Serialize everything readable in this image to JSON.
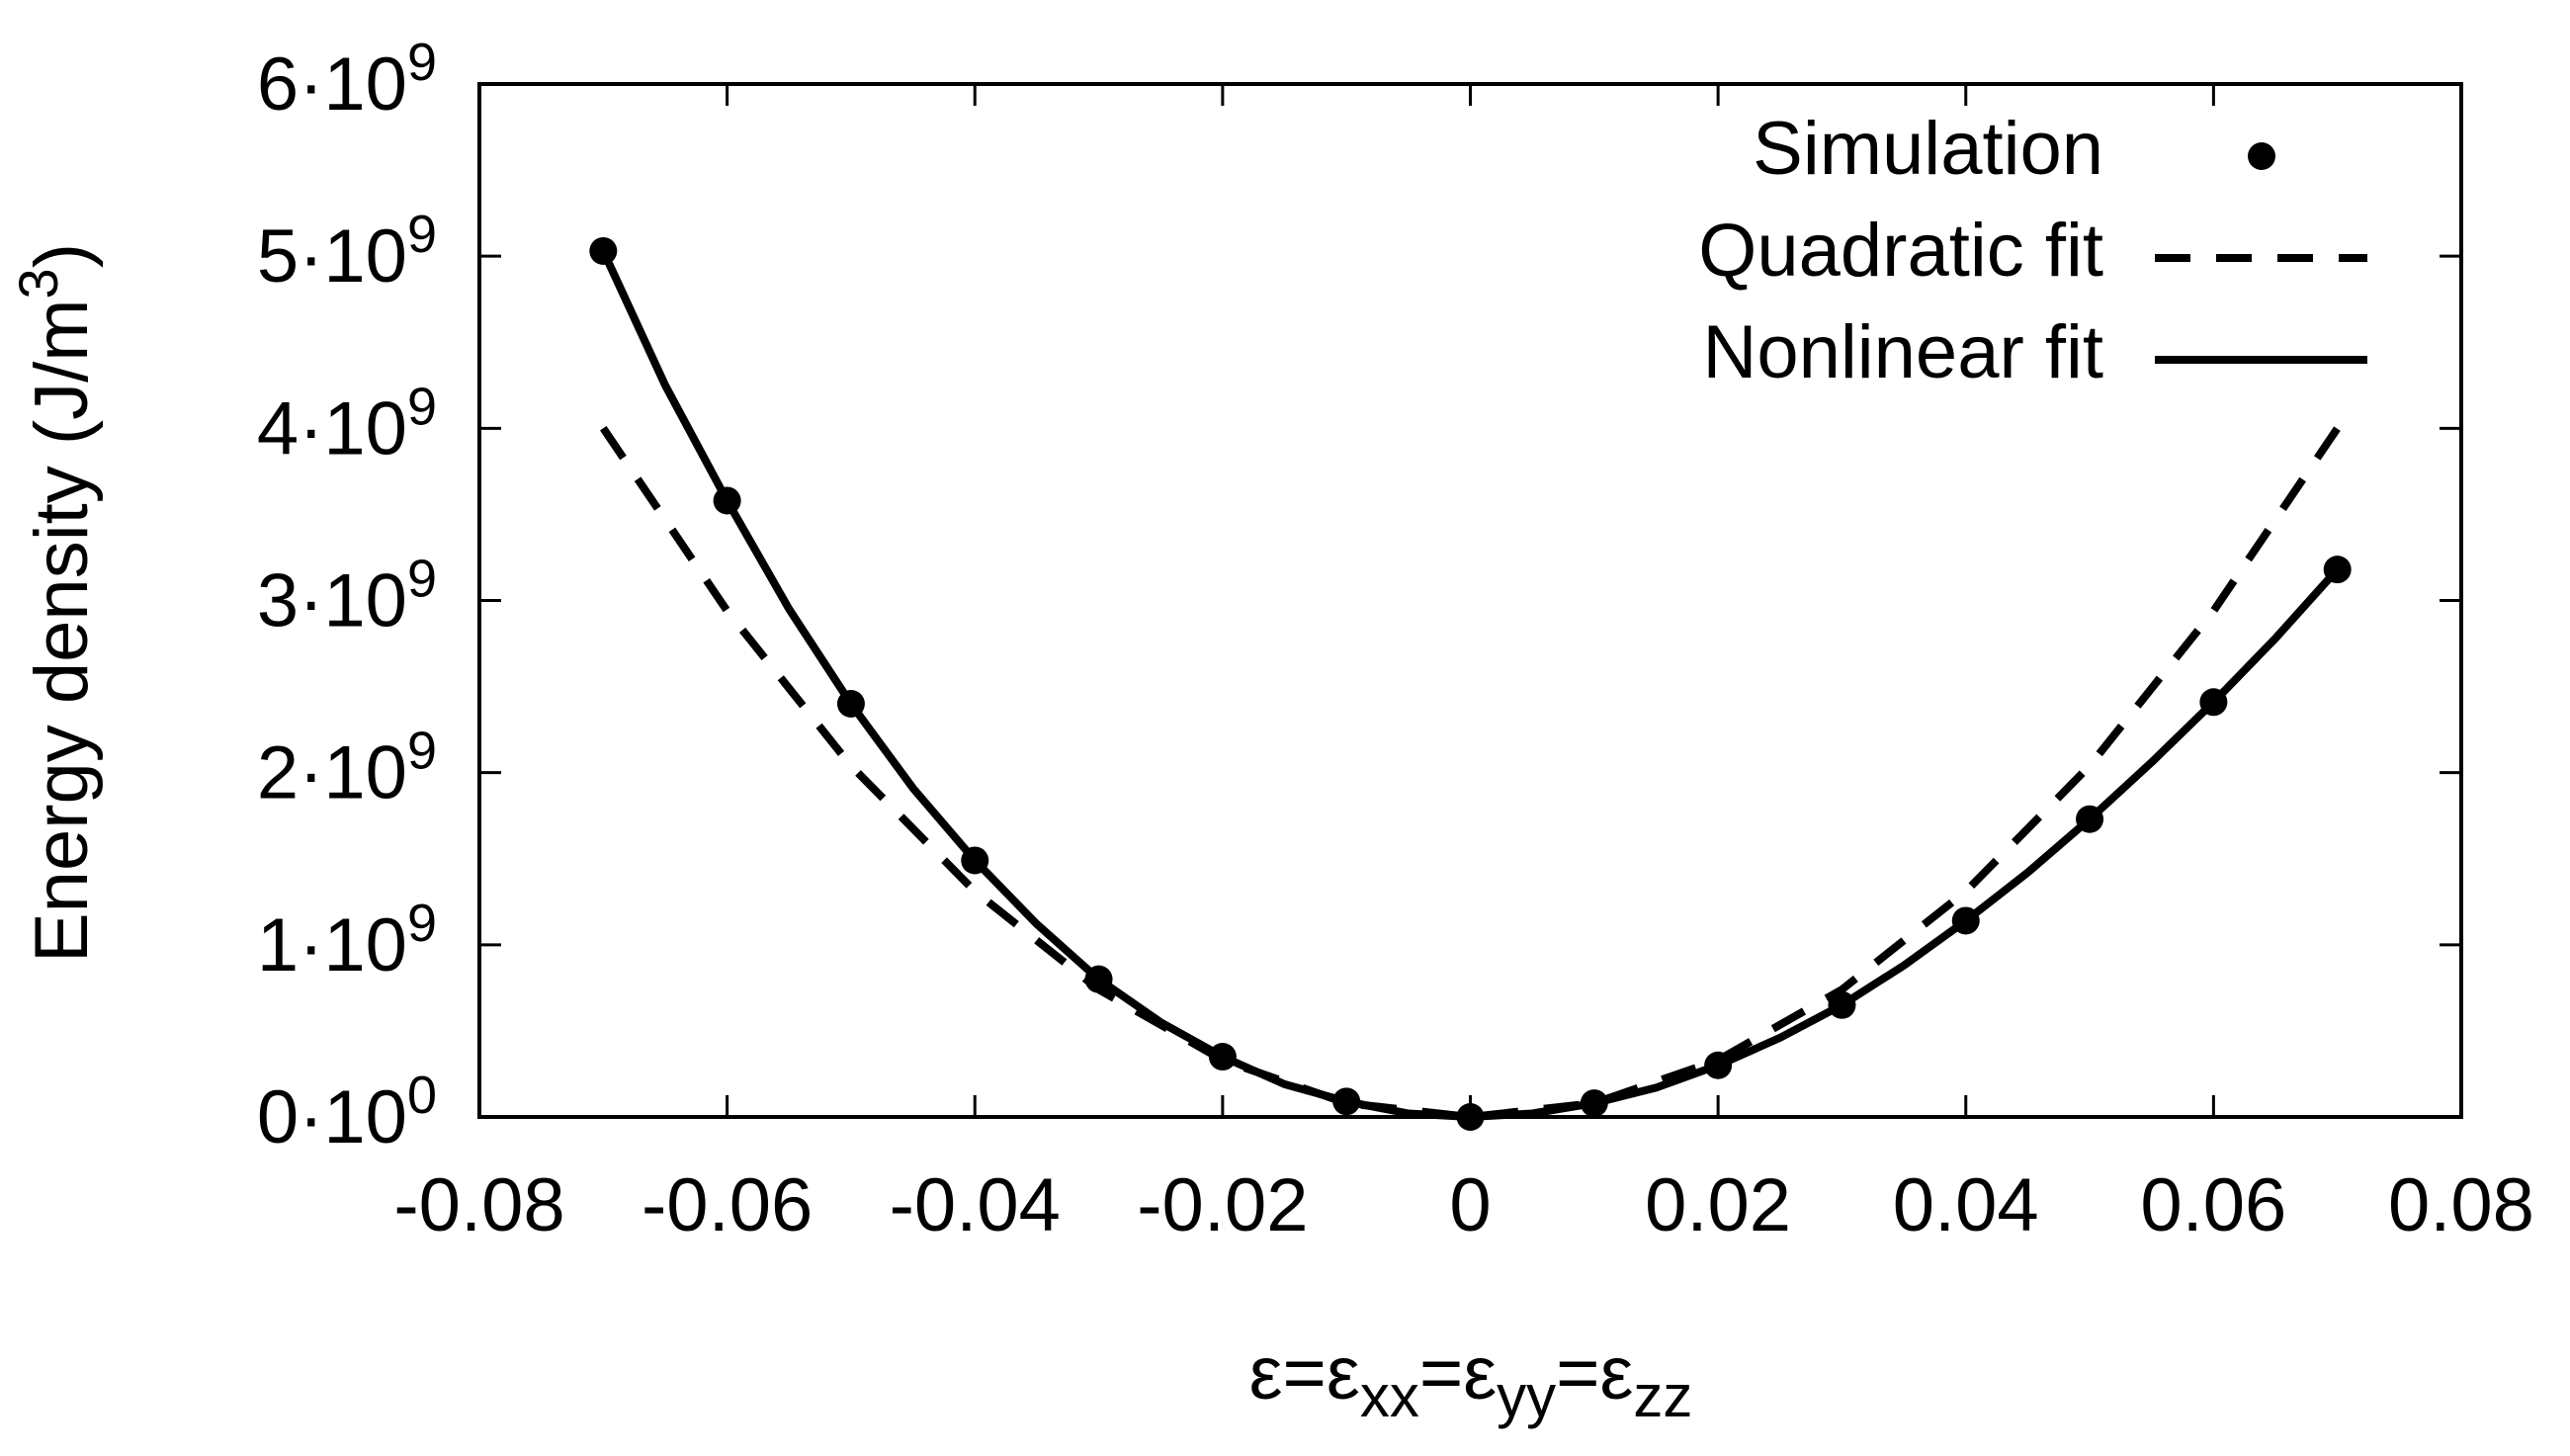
{
  "chart_data": {
    "type": "line",
    "xlabel": {
      "base": "ε=ε",
      "parts": [
        {
          "sub": "xx",
          "after": "=ε"
        },
        {
          "sub": "yy",
          "after": "=ε"
        },
        {
          "sub": "zz",
          "after": ""
        }
      ]
    },
    "ylabel": {
      "text": "Energy density (J/m",
      "sup": "3",
      "close": ")"
    },
    "xlim": [
      -0.08,
      0.08
    ],
    "ylim": [
      0,
      6000000000
    ],
    "xticks": [
      {
        "v": -0.08,
        "label": "-0.08"
      },
      {
        "v": -0.06,
        "label": "-0.06"
      },
      {
        "v": -0.04,
        "label": "-0.04"
      },
      {
        "v": -0.02,
        "label": "-0.02"
      },
      {
        "v": 0,
        "label": "0"
      },
      {
        "v": 0.02,
        "label": "0.02"
      },
      {
        "v": 0.04,
        "label": "0.04"
      },
      {
        "v": 0.06,
        "label": "0.06"
      },
      {
        "v": 0.08,
        "label": "0.08"
      }
    ],
    "yticks": [
      {
        "v": 0,
        "mant": "0·10",
        "exp": "0"
      },
      {
        "v": 1000000000,
        "mant": "1·10",
        "exp": "9"
      },
      {
        "v": 2000000000,
        "mant": "2·10",
        "exp": "9"
      },
      {
        "v": 3000000000,
        "mant": "3·10",
        "exp": "9"
      },
      {
        "v": 4000000000,
        "mant": "4·10",
        "exp": "9"
      },
      {
        "v": 5000000000,
        "mant": "5·10",
        "exp": "9"
      },
      {
        "v": 6000000000,
        "mant": "6·10",
        "exp": "9"
      }
    ],
    "legend_position": "top-right",
    "grid": false,
    "series": [
      {
        "name": "Simulation",
        "style": "points",
        "color": "#000000",
        "x": [
          -0.07,
          -0.06,
          -0.05,
          -0.04,
          -0.03,
          -0.02,
          -0.01,
          0.0,
          0.01,
          0.02,
          0.03,
          0.04,
          0.05,
          0.06,
          0.07
        ],
        "y": [
          5030000000,
          3580000000,
          2400000000,
          1490000000,
          800000000,
          350000000,
          90000000,
          0,
          80000000,
          300000000,
          650000000,
          1140000000,
          1730000000,
          2410000000,
          3180000000
        ]
      },
      {
        "name": "Quadratic fit",
        "style": "dashed",
        "color": "#000000",
        "x": [
          -0.07,
          -0.06,
          -0.05,
          -0.04,
          -0.03,
          -0.02,
          -0.01,
          0.0,
          0.01,
          0.02,
          0.03,
          0.04,
          0.05,
          0.06,
          0.07
        ],
        "y": [
          4000000000,
          2940000000,
          2040000000,
          1310000000,
          740000000,
          330000000,
          80000000,
          0,
          80000000,
          330000000,
          740000000,
          1310000000,
          2040000000,
          2940000000,
          4000000000
        ]
      },
      {
        "name": "Nonlinear fit",
        "style": "solid",
        "color": "#000000",
        "x": [
          -0.07,
          -0.065,
          -0.06,
          -0.055,
          -0.05,
          -0.045,
          -0.04,
          -0.035,
          -0.03,
          -0.025,
          -0.02,
          -0.015,
          -0.01,
          -0.005,
          0.0,
          0.005,
          0.01,
          0.015,
          0.02,
          0.025,
          0.03,
          0.035,
          0.04,
          0.045,
          0.05,
          0.055,
          0.06,
          0.065,
          0.07
        ],
        "y": [
          5030000000,
          4250000000,
          3580000000,
          2950000000,
          2400000000,
          1910000000,
          1490000000,
          1120000000,
          800000000,
          550000000,
          350000000,
          190000000,
          90000000,
          20000000,
          0,
          20000000,
          80000000,
          170000000,
          300000000,
          460000000,
          650000000,
          880000000,
          1140000000,
          1420000000,
          1730000000,
          2060000000,
          2410000000,
          2780000000,
          3180000000
        ]
      }
    ]
  }
}
